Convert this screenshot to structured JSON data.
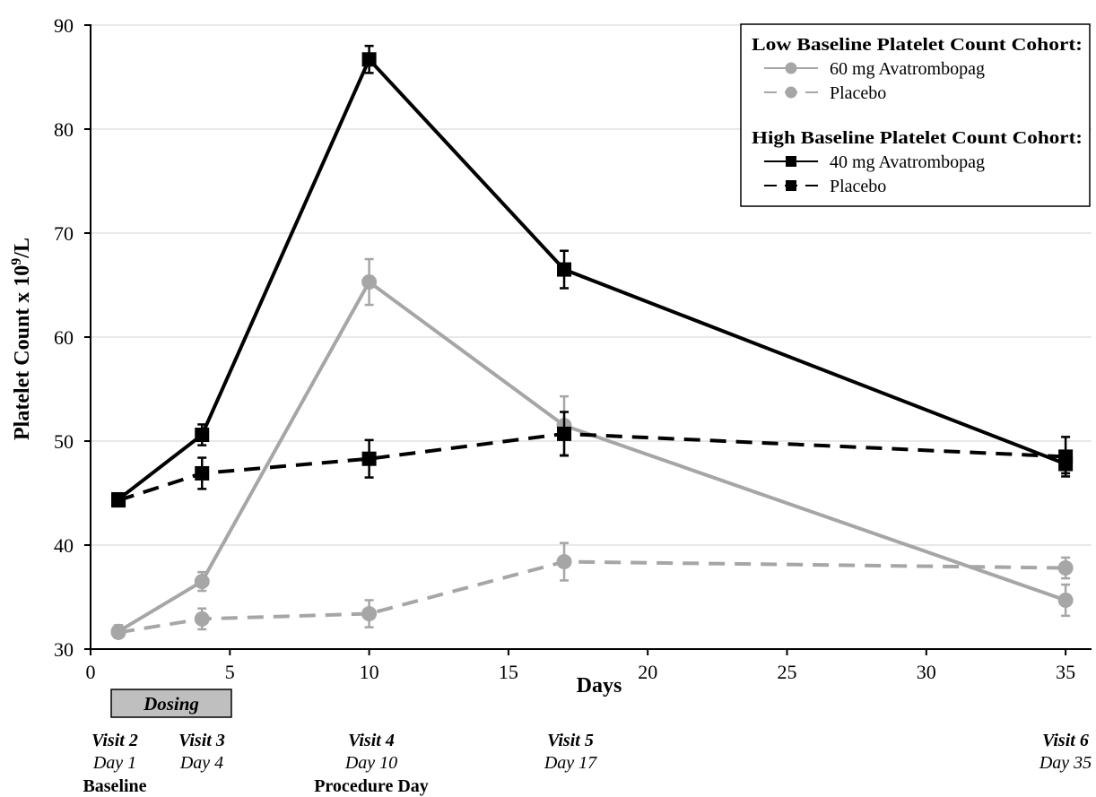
{
  "chart_data": {
    "type": "line",
    "title": "",
    "xlabel": "Days",
    "ylabel": "Platelet Count x 10⁹/L",
    "xlim": [
      0,
      36
    ],
    "ylim": [
      30,
      90
    ],
    "xticks": [
      0,
      5,
      10,
      15,
      20,
      25,
      30,
      35
    ],
    "yticks": [
      30,
      40,
      50,
      60,
      70,
      80,
      90
    ],
    "grid": "horizontal",
    "legend_placement": "top-right",
    "legend": {
      "groups": [
        {
          "heading": "Low Baseline Platelet Count Cohort:",
          "entries": [
            "60 mg Avatrombopag",
            "Placebo"
          ]
        },
        {
          "heading": "High Baseline Platelet Count Cohort:",
          "entries": [
            "40 mg Avatrombopag",
            "Placebo"
          ]
        }
      ]
    },
    "series": [
      {
        "name": "60 mg Avatrombopag",
        "cohort": "Low Baseline Platelet Count Cohort",
        "color": "#a6a6a6",
        "line": "solid",
        "marker": "circle",
        "x": [
          1,
          4,
          10,
          17,
          35
        ],
        "y": [
          31.7,
          36.5,
          65.3,
          51.5,
          34.7
        ],
        "err": [
          0.6,
          0.9,
          2.2,
          2.8,
          1.5
        ]
      },
      {
        "name": "Placebo",
        "cohort": "Low Baseline Platelet Count Cohort",
        "color": "#a6a6a6",
        "line": "dashed",
        "marker": "circle",
        "x": [
          1,
          4,
          10,
          17,
          35
        ],
        "y": [
          31.6,
          32.9,
          33.4,
          38.4,
          37.8
        ],
        "err": [
          0.5,
          1.0,
          1.3,
          1.8,
          1.0
        ]
      },
      {
        "name": "40 mg Avatrombopag",
        "cohort": "High Baseline Platelet Count Cohort",
        "color": "#000000",
        "line": "solid",
        "marker": "square",
        "x": [
          1,
          4,
          10,
          17,
          35
        ],
        "y": [
          44.4,
          50.6,
          86.7,
          66.5,
          47.8
        ],
        "err": [
          0.5,
          1.0,
          1.3,
          1.8,
          0.9
        ]
      },
      {
        "name": "Placebo",
        "cohort": "High Baseline Platelet Count Cohort",
        "color": "#000000",
        "line": "dashed",
        "marker": "square",
        "x": [
          1,
          4,
          10,
          17,
          35
        ],
        "y": [
          44.3,
          46.9,
          48.3,
          50.7,
          48.5
        ],
        "err": [
          0.5,
          1.5,
          1.8,
          2.1,
          1.9
        ]
      }
    ],
    "annotations": {
      "dosing": {
        "label": "Dosing",
        "x_start": 1,
        "x_end": 5
      },
      "visits": [
        {
          "visit": "Visit 2",
          "day_label": "Day 1",
          "note": "Baseline",
          "x": 1
        },
        {
          "visit": "Visit 3",
          "day_label": "Day 4",
          "note": "",
          "x": 4
        },
        {
          "visit": "Visit 4",
          "day_label": "Day 10",
          "note": "Procedure Day",
          "x": 10
        },
        {
          "visit": "Visit 5",
          "day_label": "Day 17",
          "note": "",
          "x": 17
        },
        {
          "visit": "Visit 6",
          "day_label": "Day 35",
          "note": "",
          "x": 35
        }
      ]
    }
  }
}
